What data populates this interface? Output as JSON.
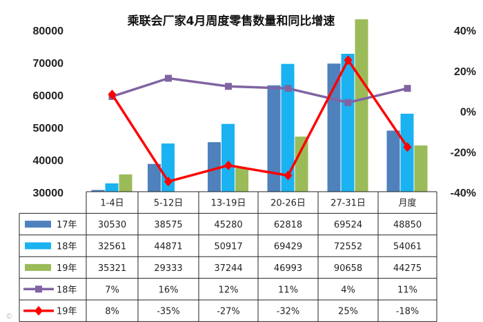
{
  "chart_data": {
    "type": "bar",
    "title": "乘联会厂家4月周度零售数量和同比增速",
    "categories": [
      "1-4日",
      "5-12日",
      "13-19日",
      "20-26日",
      "27-31日",
      "月度"
    ],
    "ylim": [
      30000,
      80000
    ],
    "yticks": [
      "30000",
      "40000",
      "50000",
      "60000",
      "70000",
      "80000"
    ],
    "y2lim": [
      -40,
      40
    ],
    "y2ticks": [
      "-40%",
      "-20%",
      "0%",
      "20%",
      "40%"
    ],
    "grid": false,
    "legend": "table-left",
    "bar_series": [
      {
        "name": "17年",
        "color": "#4f81bd",
        "values": [
          30530,
          38575,
          45280,
          62818,
          69524,
          48850
        ],
        "labels": [
          "30530",
          "38575",
          "45280",
          "62818",
          "69524",
          "48850"
        ]
      },
      {
        "name": "18年",
        "color": "#1ab2f0",
        "values": [
          32561,
          44871,
          50917,
          69429,
          72552,
          54061
        ],
        "labels": [
          "32561",
          "44871",
          "50917",
          "69429",
          "72552",
          "54061"
        ]
      },
      {
        "name": "19年",
        "color": "#9bbb59",
        "values": [
          35321,
          29333,
          37244,
          46993,
          90658,
          44275
        ],
        "labels": [
          "35321",
          "29333",
          "37244",
          "46993",
          "90658",
          "44275"
        ]
      }
    ],
    "line_series": [
      {
        "name": "18年",
        "color": "#8064a2",
        "marker": "square",
        "values": [
          7,
          16,
          12,
          11,
          4,
          11
        ],
        "labels": [
          "7%",
          "16%",
          "12%",
          "11%",
          "4%",
          "11%"
        ]
      },
      {
        "name": "19年",
        "color": "#ff0000",
        "marker": "diamond",
        "values": [
          8,
          -35,
          -27,
          -32,
          25,
          -18
        ],
        "labels": [
          "8%",
          "-35%",
          "-27%",
          "-32%",
          "25%",
          "-18%"
        ]
      }
    ]
  }
}
